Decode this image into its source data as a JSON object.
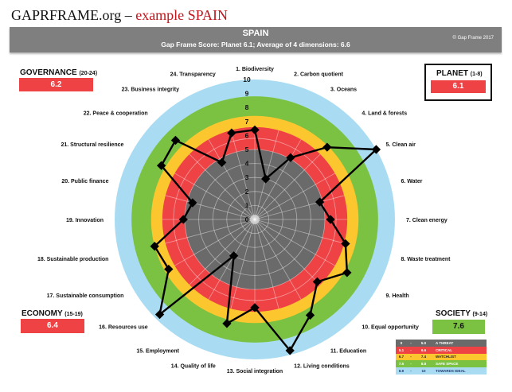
{
  "page_title": {
    "main": "GAPRFRAME.org – ",
    "highlight": "example SPAIN"
  },
  "header": {
    "country": "SPAIN",
    "subtitle": "Gap Frame Score: Planet 6.1;    Average of 4 dimensions: 6.6",
    "copyright": "© Gap Frame 2017"
  },
  "dimensions": {
    "governance": {
      "name": "GOVERNANCE",
      "range": "(20-24)",
      "score": "6.2",
      "color": "#ee4245"
    },
    "planet": {
      "name": "PLANET",
      "range": "(1-8)",
      "score": "6.1",
      "color": "#ee4245"
    },
    "economy": {
      "name": "ECONOMY",
      "range": "(15-19)",
      "score": "6.4",
      "color": "#ee4245"
    },
    "society": {
      "name": "SOCIETY",
      "range": "(9-14)",
      "score": "7.6",
      "color": "#7cc242"
    }
  },
  "legend": [
    {
      "from": "0",
      "to": "5.0",
      "label": "A THREAT",
      "color": "#6a6a6a",
      "text": "#ffffff"
    },
    {
      "from": "5.1",
      "to": "6.6",
      "label": "CRITICAL",
      "color": "#ee4245",
      "text": "#ffffff"
    },
    {
      "from": "6.7",
      "to": "7.4",
      "label": "WATCHLIST",
      "color": "#fcc72e",
      "text": "#222222"
    },
    {
      "from": "7.5",
      "to": "8.8",
      "label": "SAFE  SPACE",
      "color": "#7cc242",
      "text": "#ffffff"
    },
    {
      "from": "8.9",
      "to": "10",
      "label": "TOWARDS IDEAL",
      "color": "#a9dcf2",
      "text": "#1f3a6e"
    }
  ],
  "chart_data": {
    "type": "radar",
    "title": "SPAIN",
    "rmin": 0,
    "rmax": 10,
    "ticks": [
      "0",
      "1",
      "2",
      "3",
      "4",
      "5",
      "6",
      "7",
      "8",
      "9",
      "10"
    ],
    "bands": [
      {
        "from": 0,
        "to": 5.0,
        "color": "#6a6a6a"
      },
      {
        "from": 5.0,
        "to": 6.6,
        "color": "#ee4245"
      },
      {
        "from": 6.6,
        "to": 7.4,
        "color": "#fcc72e"
      },
      {
        "from": 7.4,
        "to": 8.8,
        "color": "#7cc242"
      },
      {
        "from": 8.8,
        "to": 10,
        "color": "#a9dcf2"
      }
    ],
    "categories": [
      "1. Biodiversity",
      "2. Carbon quotient",
      "3. Oceans",
      "4. Land & forests",
      "5. Clean air",
      "6. Water",
      "7. Clean energy",
      "8. Waste treatment",
      "9. Health",
      "10. Equal opportunity",
      "11. Education",
      "12. Living conditions",
      "13. Social integration",
      "14. Quality of life",
      "15. Employment",
      "16. Resources use",
      "17. Sustainable consumption",
      "18. Sustainable production",
      "19. Innovation",
      "20. Public finance",
      "21. Structural resilience",
      "22. Peace & cooperation",
      "23. Business integrity",
      "24. Transparency"
    ],
    "values": [
      6.4,
      3.0,
      5.1,
      7.3,
      10.0,
      4.8,
      5.4,
      6.7,
      7.6,
      6.3,
      7.9,
      9.7,
      6.3,
      7.7,
      3.0,
      9.6,
      7.1,
      7.4,
      5.1,
      4.6,
      7.7,
      8.0,
      4.7,
      6.4
    ]
  }
}
